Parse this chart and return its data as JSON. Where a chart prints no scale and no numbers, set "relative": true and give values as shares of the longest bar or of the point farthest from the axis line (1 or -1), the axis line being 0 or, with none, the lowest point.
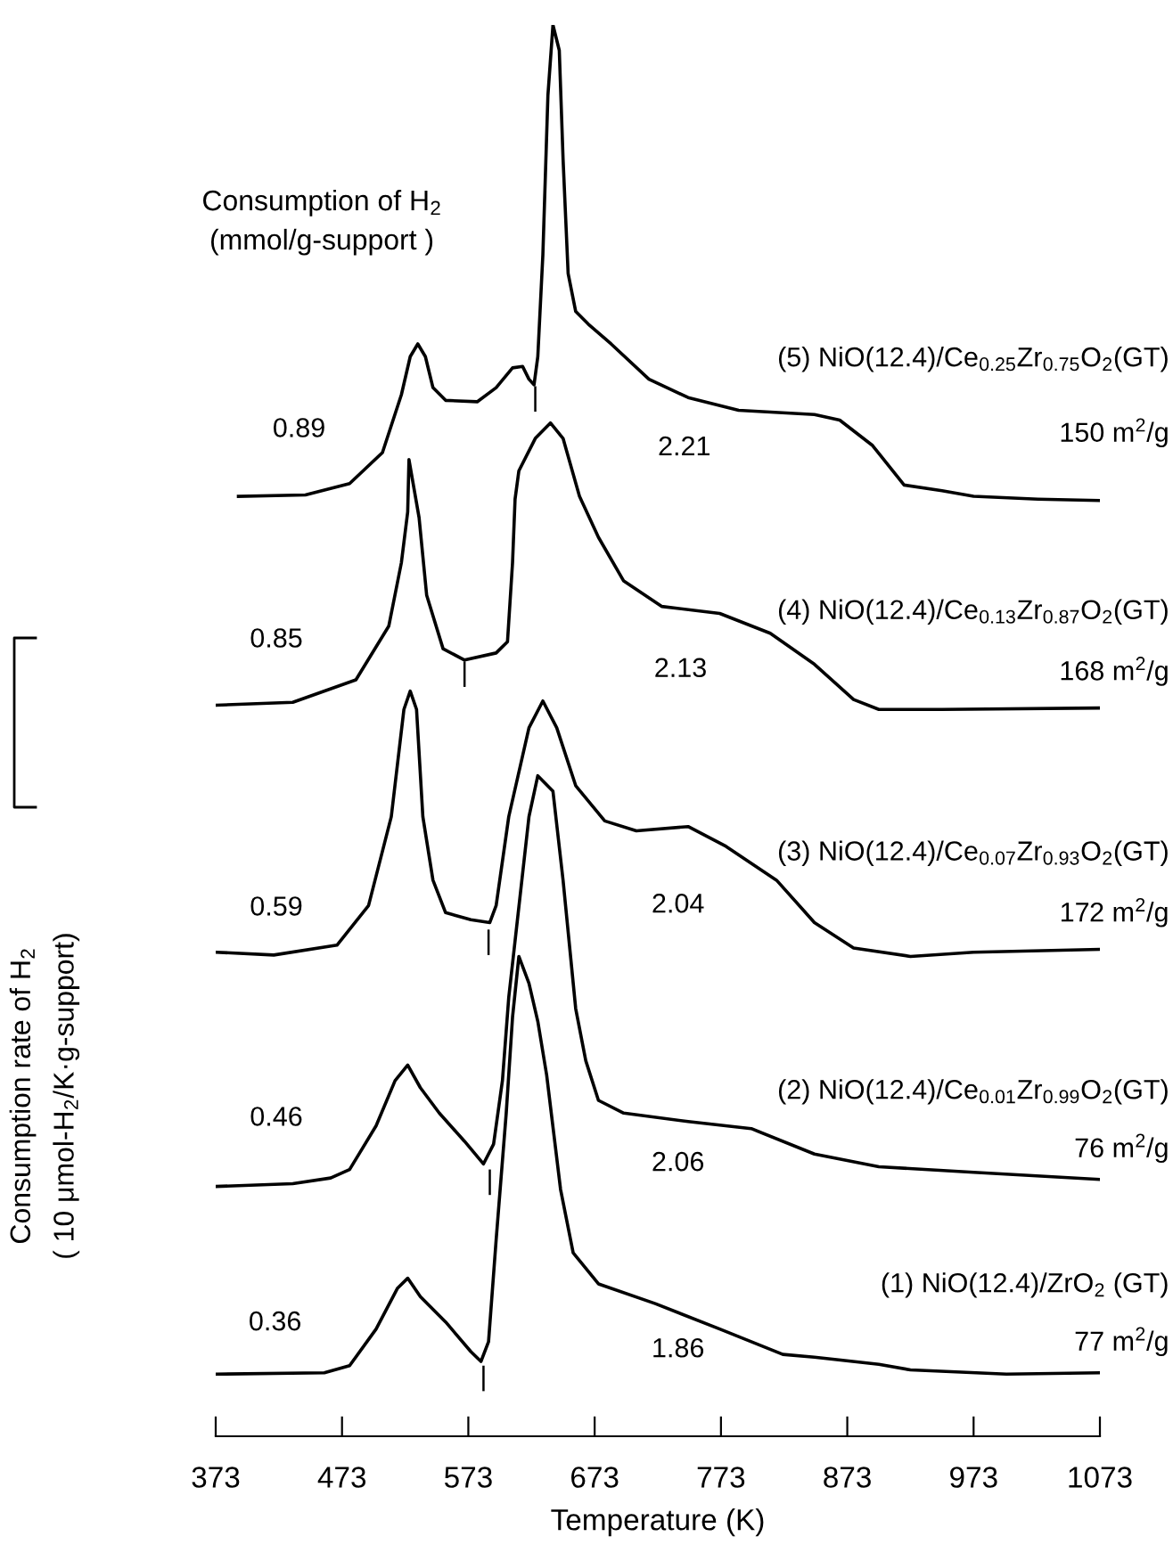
{
  "chart_data": {
    "type": "line",
    "relative": true,
    "xlabel": "Temperature (K)",
    "ylabel": "Consumption rate of H$_{2}$\n( 10 μmol-H$_{2}$/K·g-support)",
    "xlim": [
      373,
      1073
    ],
    "xticks": [
      373,
      473,
      573,
      673,
      773,
      873,
      973,
      1073
    ],
    "legend": false,
    "grid": false,
    "marker": "none",
    "line_style": "solid",
    "series": [
      {
        "name": "(5) NiO(12.4)/Ce$_{0.25}$Zr$_{0.75}$O$_{2}$(GT)",
        "color": "#000000",
        "x": [
          391,
          444,
          479,
          505,
          520,
          527,
          533,
          539,
          545,
          555,
          580,
          595,
          608,
          616,
          621,
          625,
          628,
          632,
          636,
          640,
          645,
          648,
          652,
          658,
          668,
          686,
          716,
          747,
          787,
          847,
          867,
          893,
          918,
          948,
          973,
          1024,
          1073
        ],
        "values": [
          0.666,
          0.667,
          0.675,
          0.697,
          0.738,
          0.765,
          0.774,
          0.765,
          0.743,
          0.734,
          0.733,
          0.743,
          0.757,
          0.758,
          0.749,
          0.745,
          0.765,
          0.837,
          0.95,
          1.0,
          0.982,
          0.905,
          0.824,
          0.797,
          0.788,
          0.774,
          0.749,
          0.736,
          0.727,
          0.724,
          0.72,
          0.702,
          0.674,
          0.67,
          0.666,
          0.664,
          0.663
        ]
      },
      {
        "name": "(4) NiO(12.4)/Ce$_{0.13}$Zr$_{0.87}$O$_{2}$(GT)",
        "color": "#000000",
        "x": [
          373,
          434,
          484,
          510,
          520,
          525,
          526,
          534,
          540,
          553,
          570,
          595,
          604,
          608,
          610,
          613,
          626,
          638,
          648,
          661,
          676,
          696,
          726,
          772,
          812,
          847,
          878,
          898,
          948,
          1073
        ],
        "values": [
          0.518,
          0.52,
          0.536,
          0.574,
          0.619,
          0.655,
          0.692,
          0.651,
          0.596,
          0.558,
          0.55,
          0.555,
          0.563,
          0.619,
          0.664,
          0.684,
          0.707,
          0.718,
          0.707,
          0.666,
          0.637,
          0.606,
          0.588,
          0.583,
          0.569,
          0.547,
          0.522,
          0.515,
          0.515,
          0.516
        ]
      },
      {
        "name": "(3) NiO(12.4)/Ce$_{0.07}$Zr$_{0.93}$O$_{2}$(GT)",
        "color": "#000000",
        "x": [
          373,
          419,
          469,
          494,
          512,
          522,
          527,
          532,
          537,
          545,
          555,
          575,
          590,
          595,
          605,
          621,
          632,
          643,
          658,
          681,
          706,
          747,
          777,
          817,
          847,
          878,
          923,
          973,
          1073
        ],
        "values": [
          0.343,
          0.341,
          0.348,
          0.376,
          0.439,
          0.515,
          0.528,
          0.515,
          0.439,
          0.394,
          0.371,
          0.366,
          0.364,
          0.376,
          0.439,
          0.502,
          0.521,
          0.502,
          0.461,
          0.436,
          0.429,
          0.432,
          0.418,
          0.394,
          0.364,
          0.346,
          0.34,
          0.343,
          0.345
        ]
      },
      {
        "name": "(2) NiO(12.4)/Ce$_{0.01}$Zr$_{0.99}$O$_{2}$(GT)",
        "color": "#000000",
        "x": [
          373,
          434,
          464,
          479,
          500,
          515,
          525,
          535,
          550,
          570,
          585,
          593,
          600,
          605,
          621,
          628,
          640,
          648,
          658,
          666,
          676,
          696,
          747,
          797,
          847,
          898,
          973,
          1073
        ],
        "values": [
          0.177,
          0.179,
          0.183,
          0.189,
          0.22,
          0.252,
          0.263,
          0.247,
          0.229,
          0.209,
          0.193,
          0.207,
          0.252,
          0.311,
          0.439,
          0.468,
          0.457,
          0.394,
          0.303,
          0.266,
          0.238,
          0.229,
          0.223,
          0.218,
          0.2,
          0.191,
          0.187,
          0.182
        ]
      },
      {
        "name": "(1) NiO(12.4)/ZrO$_{2}$ (GT)",
        "color": "#000000",
        "x": [
          373,
          459,
          479,
          500,
          517,
          525,
          535,
          555,
          575,
          583,
          589,
          595,
          603,
          608,
          613,
          621,
          628,
          635,
          646,
          656,
          676,
          721,
          772,
          822,
          847,
          898,
          923,
          999,
          1073
        ],
        "values": [
          0.044,
          0.045,
          0.05,
          0.076,
          0.105,
          0.112,
          0.099,
          0.081,
          0.06,
          0.053,
          0.067,
          0.139,
          0.229,
          0.297,
          0.34,
          0.321,
          0.294,
          0.256,
          0.175,
          0.13,
          0.108,
          0.094,
          0.076,
          0.058,
          0.056,
          0.051,
          0.047,
          0.044,
          0.045
        ]
      }
    ],
    "annotations": [
      "Consumption of H$_{2}$\n(mmol/g-support )",
      "150 m$^{2}$/g",
      "168 m$^{2}$/g",
      "172 m$^{2}$/g",
      "76 m$^{2}$/g",
      "77 m$^{2}$/g",
      "0.89",
      "2.21",
      "0.85",
      "2.13",
      "0.59",
      "2.04",
      "0.46",
      "2.06",
      "0.36",
      "1.86",
      "|",
      "|",
      "|",
      "|",
      "|"
    ]
  }
}
